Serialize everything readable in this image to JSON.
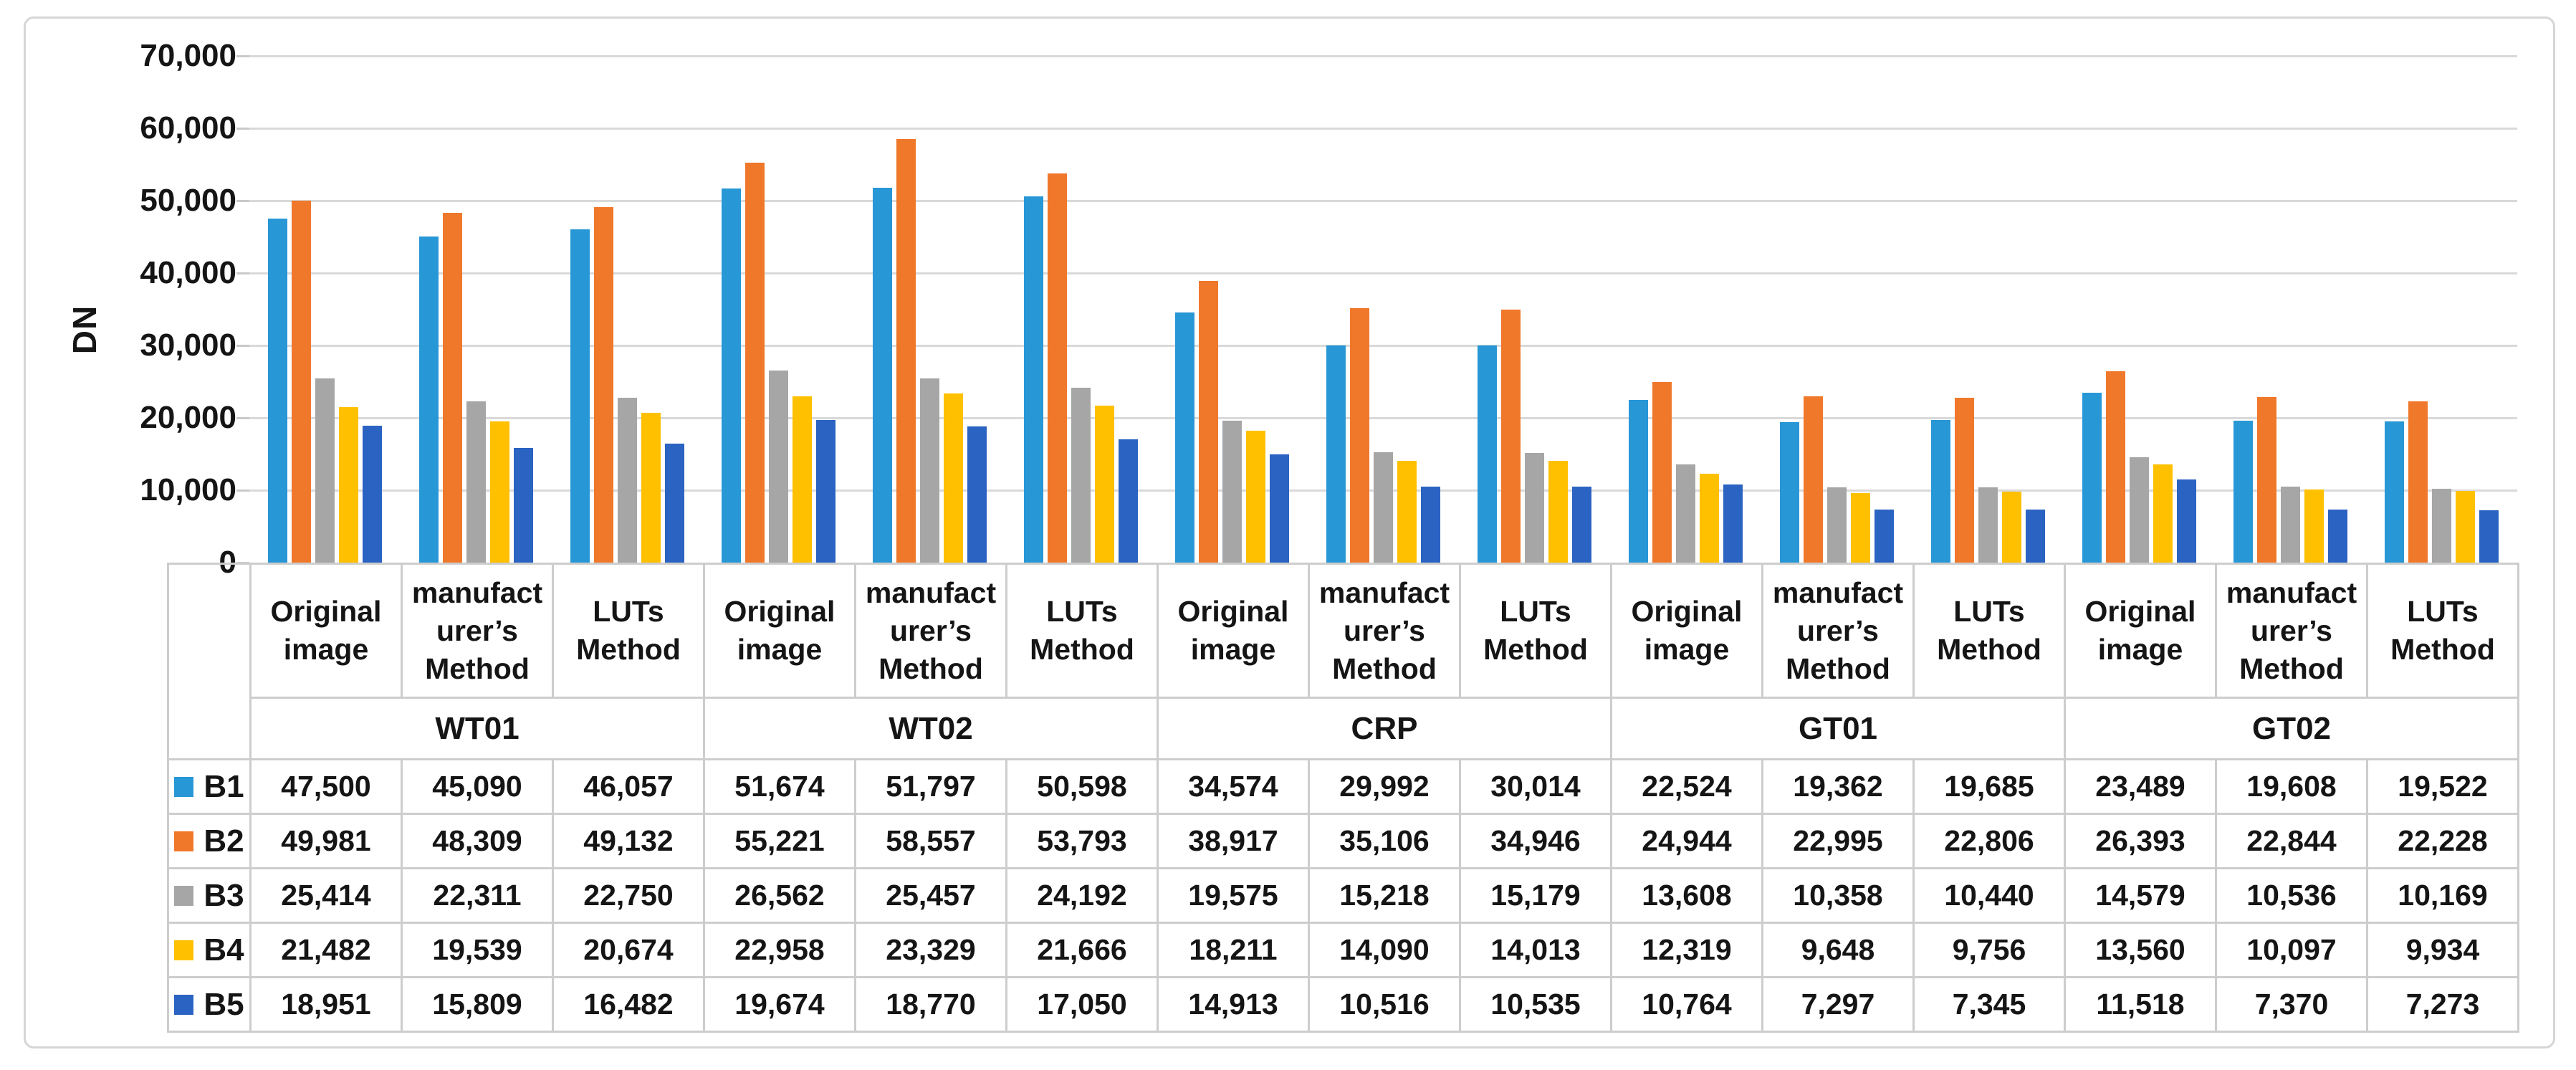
{
  "figure": {
    "background": "#FFFFFF",
    "frame_border_color": "#D6D6D6",
    "gridline_color": "#D9D9D9",
    "table_border_color": "#CDCDCD"
  },
  "chart_data": {
    "type": "bar",
    "title": "",
    "xlabel": "",
    "ylabel": "DN",
    "ylim": [
      0,
      70000
    ],
    "grid": true,
    "legend_position": "table-left",
    "yticks": [
      {
        "value": 70000,
        "label": "70,000"
      },
      {
        "value": 60000,
        "label": "60,000"
      },
      {
        "value": 50000,
        "label": "50,000"
      },
      {
        "value": 40000,
        "label": "40,000"
      },
      {
        "value": 30000,
        "label": "30,000"
      },
      {
        "value": 20000,
        "label": "20,000"
      },
      {
        "value": 10000,
        "label": "10,000"
      },
      {
        "value": 0,
        "label": "0"
      }
    ],
    "groups": [
      "WT01",
      "WT02",
      "CRP",
      "GT01",
      "GT02"
    ],
    "methods": [
      "Original image",
      "manufacturer’s Method",
      "LUTs Method"
    ],
    "method_display": [
      "Original\nimage",
      "manufact\nurer’s\nMethod",
      "LUTs\nMethod"
    ],
    "series": [
      {
        "name": "B1",
        "color": "#2897D6",
        "values": [
          47500,
          45090,
          46057,
          51674,
          51797,
          50598,
          34574,
          29992,
          30014,
          22524,
          19362,
          19685,
          23489,
          19608,
          19522
        ]
      },
      {
        "name": "B2",
        "color": "#F0782B",
        "values": [
          49981,
          48309,
          49132,
          55221,
          58557,
          53793,
          38917,
          35106,
          34946,
          24944,
          22995,
          22806,
          26393,
          22844,
          22228
        ]
      },
      {
        "name": "B3",
        "color": "#A6A6A6",
        "values": [
          25414,
          22311,
          22750,
          26562,
          25457,
          24192,
          19575,
          15218,
          15179,
          13608,
          10358,
          10440,
          14579,
          10536,
          10169
        ]
      },
      {
        "name": "B4",
        "color": "#FFC000",
        "values": [
          21482,
          19539,
          20674,
          22958,
          23329,
          21666,
          18211,
          14090,
          14013,
          12319,
          9648,
          9756,
          13560,
          10097,
          9934
        ]
      },
      {
        "name": "B5",
        "color": "#2B63C2",
        "values": [
          18951,
          15809,
          16482,
          19674,
          18770,
          17050,
          14913,
          10516,
          10535,
          10764,
          7297,
          7345,
          11518,
          7370,
          7273
        ]
      }
    ]
  }
}
